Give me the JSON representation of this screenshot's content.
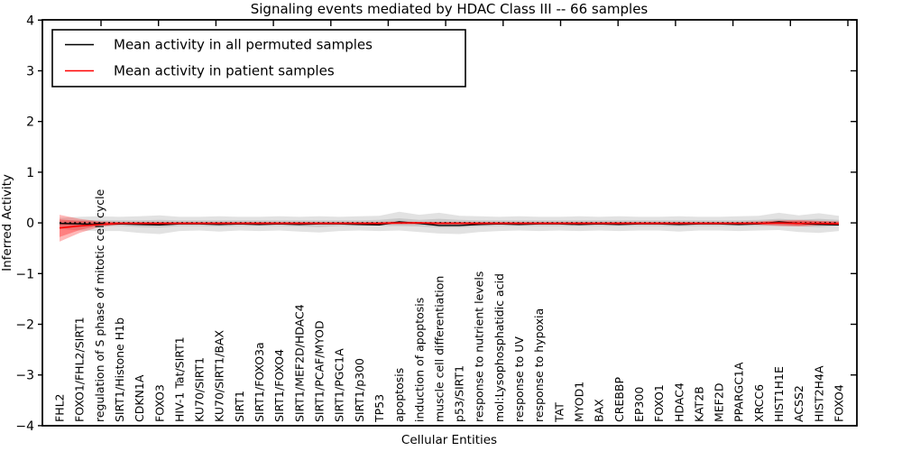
{
  "title": "Signaling events mediated by HDAC Class III -- 66 samples",
  "legend": {
    "items": [
      {
        "key": "permuted",
        "label": "Mean activity in all permuted samples",
        "color": "#000000"
      },
      {
        "key": "patient",
        "label": "Mean activity in patient samples",
        "color": "#ff0000"
      }
    ]
  },
  "colors": {
    "permuted_line": "#000000",
    "patient_line": "#ff0000",
    "permuted_band_outer": "rgba(125,125,125,0.22)",
    "permuted_band_inner": "rgba(125,125,125,0.25)",
    "patient_band_outer": "rgba(255,0,0,0.28)",
    "patient_band_inner": "rgba(255,0,0,0.30)",
    "axis": "#000000"
  },
  "chart_data": {
    "type": "line",
    "title": "Signaling events mediated by HDAC Class III -- 66 samples",
    "xlabel": "Cellular Entities",
    "ylabel": "Inferred Activity",
    "ylim": [
      -4,
      4
    ],
    "yticks": [
      -4,
      -3,
      -2,
      -1,
      0,
      1,
      2,
      3,
      4
    ],
    "grid": false,
    "legend_position": "upper left",
    "zero_line_style": "dotted",
    "categories": [
      "FHL2",
      "FOXO1/FHL2/SIRT1",
      "regulation of S phase of mitotic cell cycle",
      "SIRT1/Histone H1b",
      "CDKN1A",
      "FOXO3",
      "HIV-1 Tat/SIRT1",
      "KU70/SIRT1",
      "KU70/SIRT1/BAX",
      "SIRT1",
      "SIRT1/FOXO3a",
      "SIRT1/FOXO4",
      "SIRT1/MEF2D/HDAC4",
      "SIRT1/PCAF/MYOD",
      "SIRT1/PGC1A",
      "SIRT1/p300",
      "TP53",
      "apoptosis",
      "induction of apoptosis",
      "muscle cell differentiation",
      "p53/SIRT1",
      "response to nutrient levels",
      "mol:Lysophosphatidic acid",
      "response to UV",
      "response to hypoxia",
      "TAT",
      "MYOD1",
      "BAX",
      "CREBBP",
      "EP300",
      "FOXO1",
      "HDAC4",
      "KAT2B",
      "MEF2D",
      "PPARGC1A",
      "XRCC6",
      "HIST1H1E",
      "ACSS2",
      "HIST2H4A",
      "FOXO4"
    ],
    "series": [
      {
        "name": "Mean activity in all permuted samples",
        "color": "#000000",
        "values": [
          -0.01,
          -0.02,
          -0.03,
          -0.02,
          -0.03,
          -0.04,
          -0.02,
          -0.02,
          -0.03,
          -0.02,
          -0.03,
          -0.02,
          -0.03,
          -0.02,
          -0.02,
          -0.03,
          -0.04,
          0.02,
          -0.01,
          -0.05,
          -0.05,
          -0.03,
          -0.02,
          -0.03,
          -0.02,
          -0.02,
          -0.03,
          -0.02,
          -0.03,
          -0.02,
          -0.02,
          -0.03,
          -0.02,
          -0.02,
          -0.03,
          -0.02,
          0.02,
          -0.01,
          -0.03,
          -0.04
        ]
      },
      {
        "name": "Mean activity in patient samples",
        "color": "#ff0000",
        "values": [
          -0.1,
          -0.06,
          -0.03,
          -0.01,
          -0.01,
          -0.01,
          -0.01,
          -0.01,
          -0.01,
          -0.01,
          -0.01,
          -0.01,
          -0.01,
          -0.01,
          -0.01,
          -0.01,
          -0.01,
          0.0,
          0.0,
          -0.01,
          -0.01,
          -0.01,
          -0.01,
          -0.01,
          -0.01,
          -0.01,
          -0.01,
          -0.01,
          -0.01,
          -0.01,
          -0.01,
          -0.01,
          -0.01,
          -0.01,
          -0.01,
          -0.01,
          0.0,
          -0.01,
          -0.01,
          -0.02
        ]
      }
    ],
    "bands": [
      {
        "name": "permuted-outer",
        "series": "Mean activity in all permuted samples",
        "upper": [
          0.1,
          0.12,
          0.13,
          0.12,
          0.13,
          0.15,
          0.12,
          0.12,
          0.13,
          0.12,
          0.12,
          0.13,
          0.12,
          0.13,
          0.12,
          0.13,
          0.14,
          0.22,
          0.16,
          0.2,
          0.14,
          0.13,
          0.12,
          0.13,
          0.12,
          0.12,
          0.13,
          0.12,
          0.13,
          0.12,
          0.12,
          0.13,
          0.12,
          0.12,
          0.13,
          0.14,
          0.2,
          0.15,
          0.19,
          0.14
        ],
        "lower": [
          -0.12,
          -0.15,
          -0.16,
          -0.16,
          -0.2,
          -0.22,
          -0.16,
          -0.15,
          -0.17,
          -0.15,
          -0.16,
          -0.15,
          -0.17,
          -0.19,
          -0.16,
          -0.15,
          -0.16,
          -0.15,
          -0.18,
          -0.21,
          -0.22,
          -0.18,
          -0.16,
          -0.15,
          -0.16,
          -0.15,
          -0.16,
          -0.15,
          -0.16,
          -0.15,
          -0.15,
          -0.17,
          -0.15,
          -0.15,
          -0.16,
          -0.15,
          -0.14,
          -0.18,
          -0.2,
          -0.16
        ]
      },
      {
        "name": "permuted-inner",
        "series": "Mean activity in all permuted samples",
        "upper": [
          0.04,
          0.05,
          0.05,
          0.05,
          0.05,
          0.06,
          0.05,
          0.05,
          0.05,
          0.05,
          0.05,
          0.05,
          0.05,
          0.05,
          0.05,
          0.05,
          0.06,
          0.09,
          0.06,
          0.08,
          0.06,
          0.05,
          0.05,
          0.05,
          0.05,
          0.05,
          0.05,
          0.05,
          0.05,
          0.05,
          0.05,
          0.05,
          0.05,
          0.05,
          0.05,
          0.06,
          0.08,
          0.06,
          0.08,
          0.06
        ],
        "lower": [
          -0.05,
          -0.06,
          -0.06,
          -0.06,
          -0.08,
          -0.09,
          -0.06,
          -0.06,
          -0.07,
          -0.06,
          -0.06,
          -0.06,
          -0.07,
          -0.08,
          -0.06,
          -0.06,
          -0.06,
          -0.06,
          -0.07,
          -0.09,
          -0.09,
          -0.07,
          -0.06,
          -0.06,
          -0.06,
          -0.06,
          -0.06,
          -0.06,
          -0.06,
          -0.06,
          -0.06,
          -0.07,
          -0.06,
          -0.06,
          -0.06,
          -0.06,
          -0.06,
          -0.07,
          -0.08,
          -0.06
        ]
      },
      {
        "name": "patient-outer",
        "series": "Mean activity in patient samples",
        "upper": [
          0.16,
          0.08,
          0.03,
          0.02,
          0.02,
          0.02,
          0.02,
          0.02,
          0.02,
          0.02,
          0.02,
          0.02,
          0.02,
          0.02,
          0.02,
          0.02,
          0.02,
          0.03,
          0.02,
          0.02,
          0.02,
          0.02,
          0.02,
          0.02,
          0.02,
          0.02,
          0.02,
          0.02,
          0.02,
          0.02,
          0.02,
          0.02,
          0.02,
          0.02,
          0.02,
          0.03,
          0.05,
          0.06,
          0.04,
          0.03
        ],
        "lower": [
          -0.37,
          -0.2,
          -0.08,
          -0.04,
          -0.03,
          -0.03,
          -0.03,
          -0.03,
          -0.03,
          -0.03,
          -0.03,
          -0.03,
          -0.03,
          -0.03,
          -0.03,
          -0.03,
          -0.03,
          -0.03,
          -0.03,
          -0.03,
          -0.03,
          -0.03,
          -0.03,
          -0.03,
          -0.03,
          -0.03,
          -0.03,
          -0.03,
          -0.03,
          -0.03,
          -0.03,
          -0.03,
          -0.03,
          -0.03,
          -0.03,
          -0.04,
          -0.06,
          -0.07,
          -0.05,
          -0.04
        ]
      },
      {
        "name": "patient-inner",
        "series": "Mean activity in patient samples",
        "upper": [
          0.07,
          0.04,
          0.02,
          0.01,
          0.01,
          0.01,
          0.01,
          0.01,
          0.01,
          0.01,
          0.01,
          0.01,
          0.01,
          0.01,
          0.01,
          0.01,
          0.01,
          0.02,
          0.01,
          0.01,
          0.01,
          0.01,
          0.01,
          0.01,
          0.01,
          0.01,
          0.01,
          0.01,
          0.01,
          0.01,
          0.01,
          0.01,
          0.01,
          0.01,
          0.01,
          0.02,
          0.03,
          0.04,
          0.03,
          0.02
        ],
        "lower": [
          -0.28,
          -0.14,
          -0.05,
          -0.02,
          -0.02,
          -0.02,
          -0.02,
          -0.02,
          -0.02,
          -0.02,
          -0.02,
          -0.02,
          -0.02,
          -0.02,
          -0.02,
          -0.02,
          -0.02,
          -0.02,
          -0.02,
          -0.02,
          -0.02,
          -0.02,
          -0.02,
          -0.02,
          -0.02,
          -0.02,
          -0.02,
          -0.02,
          -0.02,
          -0.02,
          -0.02,
          -0.02,
          -0.02,
          -0.02,
          -0.02,
          -0.03,
          -0.04,
          -0.05,
          -0.04,
          -0.03
        ]
      }
    ]
  }
}
